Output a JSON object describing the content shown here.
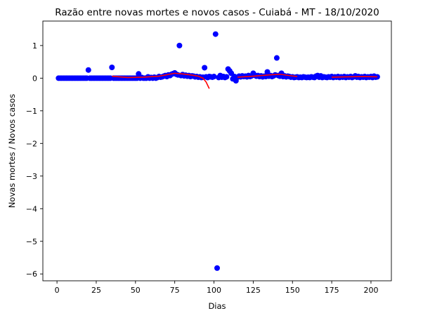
{
  "chart_data": {
    "type": "scatter",
    "title": "Razão entre novas mortes e novos casos - Cuiabá - MT - 18/10/2020",
    "xlabel": "Dias",
    "ylabel": "Novas mortes / Novos casos",
    "xlim": [
      -9,
      213
    ],
    "ylim": [
      -6.21,
      1.75
    ],
    "x_ticks": [
      0,
      25,
      50,
      75,
      100,
      125,
      150,
      175,
      200
    ],
    "x_tick_labels": [
      "0",
      "25",
      "50",
      "75",
      "100",
      "125",
      "150",
      "175",
      "200"
    ],
    "y_ticks": [
      1,
      0,
      -1,
      -2,
      -3,
      -4,
      -5,
      -6
    ],
    "y_tick_labels": [
      "1",
      "0",
      "−1",
      "−2",
      "−3",
      "−4",
      "−5",
      "−6"
    ],
    "grid": false,
    "series": [
      {
        "kind": "scatter",
        "color": "#0000ff",
        "points": [
          [
            1,
            0
          ],
          [
            2,
            0
          ],
          [
            3,
            0
          ],
          [
            4,
            0
          ],
          [
            5,
            0
          ],
          [
            6,
            0
          ],
          [
            7,
            0
          ],
          [
            8,
            0
          ],
          [
            9,
            0
          ],
          [
            10,
            0
          ],
          [
            11,
            0
          ],
          [
            12,
            0
          ],
          [
            13,
            0
          ],
          [
            14,
            0
          ],
          [
            15,
            0
          ],
          [
            16,
            0
          ],
          [
            17,
            0
          ],
          [
            18,
            0
          ],
          [
            19,
            0
          ],
          [
            20,
            0.25
          ],
          [
            21,
            0
          ],
          [
            22,
            0
          ],
          [
            23,
            0
          ],
          [
            24,
            0
          ],
          [
            25,
            0
          ],
          [
            26,
            0
          ],
          [
            27,
            0
          ],
          [
            28,
            0
          ],
          [
            29,
            0
          ],
          [
            30,
            0
          ],
          [
            31,
            0
          ],
          [
            32,
            0
          ],
          [
            33,
            0
          ],
          [
            34,
            0
          ],
          [
            35,
            0.33
          ],
          [
            36,
            0
          ],
          [
            37,
            0
          ],
          [
            38,
            0
          ],
          [
            39,
            0
          ],
          [
            40,
            0
          ],
          [
            41,
            0
          ],
          [
            42,
            0
          ],
          [
            43,
            0
          ],
          [
            44,
            0
          ],
          [
            45,
            0
          ],
          [
            46,
            0
          ],
          [
            47,
            0
          ],
          [
            48,
            0
          ],
          [
            49,
            0
          ],
          [
            50,
            0
          ],
          [
            51,
            0
          ],
          [
            52,
            0.13
          ],
          [
            53,
            0
          ],
          [
            54,
            0.02
          ],
          [
            55,
            0
          ],
          [
            56,
            0
          ],
          [
            57,
            0
          ],
          [
            58,
            0.04
          ],
          [
            59,
            0
          ],
          [
            60,
            0.02
          ],
          [
            61,
            0
          ],
          [
            62,
            0.03
          ],
          [
            63,
            0
          ],
          [
            64,
            0.02
          ],
          [
            65,
            0.05
          ],
          [
            66,
            0.03
          ],
          [
            67,
            0.04
          ],
          [
            68,
            0.06
          ],
          [
            69,
            0.08
          ],
          [
            70,
            0.05
          ],
          [
            71,
            0.1
          ],
          [
            72,
            0.08
          ],
          [
            73,
            0.12
          ],
          [
            74,
            0.14
          ],
          [
            75,
            0.16
          ],
          [
            76,
            0.12
          ],
          [
            77,
            0.1
          ],
          [
            78,
            1.0
          ],
          [
            79,
            0.08
          ],
          [
            80,
            0.11
          ],
          [
            81,
            0.07
          ],
          [
            82,
            0.09
          ],
          [
            83,
            0.06
          ],
          [
            84,
            0.08
          ],
          [
            85,
            0.05
          ],
          [
            86,
            0.07
          ],
          [
            87,
            0.06
          ],
          [
            88,
            0.04
          ],
          [
            89,
            0.05
          ],
          [
            90,
            0.03
          ],
          [
            91,
            0.04
          ],
          [
            92,
            0.02
          ],
          [
            93,
            0.03
          ],
          [
            94,
            0.32
          ],
          [
            95,
            0.04
          ],
          [
            96,
            0.02
          ],
          [
            97,
            0.05
          ],
          [
            98,
            0.04
          ],
          [
            99,
            0.03
          ],
          [
            100,
            0.05
          ],
          [
            101,
            1.35
          ],
          [
            102,
            -5.82
          ],
          [
            103,
            0.02
          ],
          [
            104,
            0.08
          ],
          [
            105,
            0.03
          ],
          [
            106,
            0.05
          ],
          [
            107,
            0.02
          ],
          [
            108,
            0.04
          ],
          [
            109,
            0.28
          ],
          [
            110,
            0.22
          ],
          [
            111,
            0.15
          ],
          [
            112,
            -0.02
          ],
          [
            113,
            0.05
          ],
          [
            114,
            -0.08
          ],
          [
            115,
            0.03
          ],
          [
            116,
            0.06
          ],
          [
            117,
            0.04
          ],
          [
            118,
            0.07
          ],
          [
            119,
            0.05
          ],
          [
            120,
            0.06
          ],
          [
            121,
            0.04
          ],
          [
            122,
            0.08
          ],
          [
            123,
            0.05
          ],
          [
            124,
            0.07
          ],
          [
            125,
            0.15
          ],
          [
            126,
            0.09
          ],
          [
            127,
            0.06
          ],
          [
            128,
            0.08
          ],
          [
            129,
            0.05
          ],
          [
            130,
            0.07
          ],
          [
            131,
            0.04
          ],
          [
            132,
            0.06
          ],
          [
            133,
            0.05
          ],
          [
            134,
            0.19
          ],
          [
            135,
            0.06
          ],
          [
            136,
            0.08
          ],
          [
            137,
            0.05
          ],
          [
            138,
            0.07
          ],
          [
            139,
            0.1
          ],
          [
            140,
            0.62
          ],
          [
            141,
            0.08
          ],
          [
            142,
            0.06
          ],
          [
            143,
            0.15
          ],
          [
            144,
            0.05
          ],
          [
            145,
            0.07
          ],
          [
            146,
            0.04
          ],
          [
            147,
            0.06
          ],
          [
            148,
            0.05
          ],
          [
            149,
            0.03
          ],
          [
            150,
            0.04
          ],
          [
            151,
            0.02
          ],
          [
            152,
            0.03
          ],
          [
            153,
            0.04
          ],
          [
            154,
            0.02
          ],
          [
            155,
            0.03
          ],
          [
            156,
            0.02
          ],
          [
            157,
            0.04
          ],
          [
            158,
            0.03
          ],
          [
            159,
            0.02
          ],
          [
            160,
            0.03
          ],
          [
            161,
            0.02
          ],
          [
            162,
            0.04
          ],
          [
            163,
            0.03
          ],
          [
            164,
            0.02
          ],
          [
            165,
            0.06
          ],
          [
            166,
            0.08
          ],
          [
            167,
            0.03
          ],
          [
            168,
            0.07
          ],
          [
            169,
            0.02
          ],
          [
            170,
            0.04
          ],
          [
            171,
            0.03
          ],
          [
            172,
            0.02
          ],
          [
            173,
            0.04
          ],
          [
            174,
            0.03
          ],
          [
            175,
            0.05
          ],
          [
            176,
            0.02
          ],
          [
            177,
            0.04
          ],
          [
            178,
            0.03
          ],
          [
            179,
            0.05
          ],
          [
            180,
            0.02
          ],
          [
            181,
            0.04
          ],
          [
            182,
            0.03
          ],
          [
            183,
            0.05
          ],
          [
            184,
            0.02
          ],
          [
            185,
            0.04
          ],
          [
            186,
            0.03
          ],
          [
            187,
            0.05
          ],
          [
            188,
            0.02
          ],
          [
            189,
            0.04
          ],
          [
            190,
            0.07
          ],
          [
            191,
            0.03
          ],
          [
            192,
            0.05
          ],
          [
            193,
            0.02
          ],
          [
            194,
            0.04
          ],
          [
            195,
            0.03
          ],
          [
            196,
            0.05
          ],
          [
            197,
            0.02
          ],
          [
            198,
            0.04
          ],
          [
            199,
            0.03
          ],
          [
            200,
            0.05
          ],
          [
            201,
            0.02
          ],
          [
            202,
            0.06
          ],
          [
            203,
            0.03
          ],
          [
            204,
            0.04
          ]
        ]
      },
      {
        "kind": "line",
        "color": "#ff0000",
        "points": [
          [
            35,
            0.06
          ],
          [
            45,
            0.02
          ],
          [
            55,
            0.03
          ],
          [
            65,
            0.06
          ],
          [
            75,
            0.15
          ],
          [
            80,
            0.13
          ],
          [
            85,
            0.1
          ],
          [
            90,
            0.06
          ],
          [
            93,
            0.0
          ],
          [
            95,
            -0.12
          ],
          [
            97,
            -0.32
          ]
        ]
      },
      {
        "kind": "line",
        "color": "#ff0000",
        "points": [
          [
            115,
            0.03
          ],
          [
            125,
            0.06
          ],
          [
            135,
            0.1
          ],
          [
            142,
            0.12
          ],
          [
            148,
            0.08
          ],
          [
            153,
            0.05
          ]
        ]
      },
      {
        "kind": "line",
        "color": "#ff0000",
        "points": [
          [
            175,
            0.03
          ],
          [
            185,
            0.04
          ],
          [
            195,
            0.05
          ],
          [
            204,
            0.04
          ]
        ]
      }
    ]
  }
}
